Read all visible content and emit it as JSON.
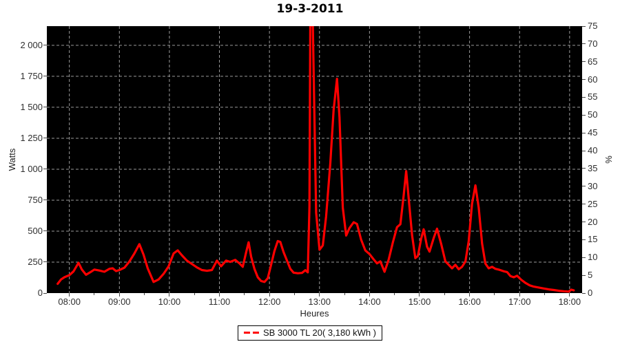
{
  "title": "19-3-2011",
  "legend": {
    "label": "SB 3000 TL 20( 3,180 kWh )"
  },
  "colors": {
    "line": "#ff0000",
    "plot_background": "#000000",
    "grid": "#9b9b9b",
    "page_background": "#ffffff",
    "tick": "#444444"
  },
  "chart_data": {
    "type": "line",
    "title": "19-3-2011",
    "xlabel": "Heures",
    "ylabel_left": "Watts",
    "ylabel_right": "%",
    "grid": true,
    "legend_position": "bottom",
    "plot_background": "black",
    "x_domain_minutes": [
      453,
      1095
    ],
    "ylim_left": [
      0,
      2155
    ],
    "ylim_right": [
      0,
      75
    ],
    "x_ticks": [
      "08:00",
      "09:00",
      "10:00",
      "11:00",
      "12:00",
      "13:00",
      "14:00",
      "15:00",
      "16:00",
      "17:00",
      "18:00"
    ],
    "y_left_ticks": [
      "0",
      "250",
      "500",
      "750",
      "1 000",
      "1 250",
      "1 500",
      "1 750",
      "2 000"
    ],
    "y_left_tick_values": [
      0,
      250,
      500,
      750,
      1000,
      1250,
      1500,
      1750,
      2000
    ],
    "y_right_ticks": [
      "0",
      "5",
      "10",
      "15",
      "20",
      "25",
      "30",
      "35",
      "40",
      "45",
      "50",
      "55",
      "60",
      "65",
      "70",
      "75"
    ],
    "y_right_tick_values": [
      0,
      5,
      10,
      15,
      20,
      25,
      30,
      35,
      40,
      45,
      50,
      55,
      60,
      65,
      70,
      75
    ],
    "note": "Midday spike ~12:49-12:52 exceeds the top of the plot and is clipped (>2155 W)",
    "series": [
      {
        "name": "SB 3000 TL 20( 3,180 kWh )",
        "color": "#ff0000",
        "points": [
          [
            "07:46",
            75
          ],
          [
            "07:50",
            110
          ],
          [
            "07:54",
            128
          ],
          [
            "08:00",
            145
          ],
          [
            "08:05",
            175
          ],
          [
            "08:11",
            245
          ],
          [
            "08:15",
            190
          ],
          [
            "08:20",
            148
          ],
          [
            "08:25",
            168
          ],
          [
            "08:30",
            190
          ],
          [
            "08:36",
            182
          ],
          [
            "08:42",
            172
          ],
          [
            "08:48",
            196
          ],
          [
            "08:52",
            200
          ],
          [
            "08:56",
            178
          ],
          [
            "09:00",
            186
          ],
          [
            "09:06",
            205
          ],
          [
            "09:12",
            255
          ],
          [
            "09:18",
            320
          ],
          [
            "09:24",
            395
          ],
          [
            "09:29",
            310
          ],
          [
            "09:34",
            200
          ],
          [
            "09:41",
            90
          ],
          [
            "09:47",
            110
          ],
          [
            "09:53",
            155
          ],
          [
            "09:59",
            215
          ],
          [
            "10:05",
            320
          ],
          [
            "10:10",
            345
          ],
          [
            "10:15",
            305
          ],
          [
            "10:21",
            262
          ],
          [
            "10:27",
            235
          ],
          [
            "10:33",
            207
          ],
          [
            "10:39",
            186
          ],
          [
            "10:45",
            180
          ],
          [
            "10:51",
            186
          ],
          [
            "10:57",
            262
          ],
          [
            "11:02",
            216
          ],
          [
            "11:08",
            262
          ],
          [
            "11:13",
            252
          ],
          [
            "11:19",
            268
          ],
          [
            "11:24",
            240
          ],
          [
            "11:28",
            212
          ],
          [
            "11:32",
            330
          ],
          [
            "11:35",
            410
          ],
          [
            "11:38",
            295
          ],
          [
            "11:42",
            195
          ],
          [
            "11:46",
            128
          ],
          [
            "11:50",
            98
          ],
          [
            "11:54",
            90
          ],
          [
            "11:58",
            120
          ],
          [
            "12:02",
            230
          ],
          [
            "12:06",
            340
          ],
          [
            "12:10",
            420
          ],
          [
            "12:13",
            413
          ],
          [
            "12:17",
            330
          ],
          [
            "12:21",
            262
          ],
          [
            "12:25",
            196
          ],
          [
            "12:29",
            165
          ],
          [
            "12:34",
            160
          ],
          [
            "12:39",
            163
          ],
          [
            "12:43",
            185
          ],
          [
            "12:46",
            168
          ],
          [
            "12:48",
            700
          ],
          [
            "12:49",
            2160
          ],
          [
            "12:52",
            2160
          ],
          [
            "12:54",
            1400
          ],
          [
            "12:56",
            650
          ],
          [
            "13:00",
            350
          ],
          [
            "13:04",
            385
          ],
          [
            "13:08",
            620
          ],
          [
            "13:13",
            1050
          ],
          [
            "13:17",
            1480
          ],
          [
            "13:21",
            1730
          ],
          [
            "13:24",
            1420
          ],
          [
            "13:28",
            690
          ],
          [
            "13:32",
            465
          ],
          [
            "13:36",
            525
          ],
          [
            "13:41",
            572
          ],
          [
            "13:45",
            558
          ],
          [
            "13:50",
            430
          ],
          [
            "13:55",
            345
          ],
          [
            "14:00",
            315
          ],
          [
            "14:05",
            272
          ],
          [
            "14:09",
            240
          ],
          [
            "14:13",
            256
          ],
          [
            "14:18",
            172
          ],
          [
            "14:23",
            270
          ],
          [
            "14:28",
            410
          ],
          [
            "14:33",
            532
          ],
          [
            "14:37",
            556
          ],
          [
            "14:41",
            790
          ],
          [
            "14:44",
            985
          ],
          [
            "14:48",
            690
          ],
          [
            "14:51",
            470
          ],
          [
            "14:55",
            282
          ],
          [
            "14:58",
            300
          ],
          [
            "15:02",
            440
          ],
          [
            "15:05",
            515
          ],
          [
            "15:09",
            375
          ],
          [
            "15:12",
            335
          ],
          [
            "15:17",
            445
          ],
          [
            "15:21",
            520
          ],
          [
            "15:26",
            395
          ],
          [
            "15:31",
            256
          ],
          [
            "15:35",
            228
          ],
          [
            "15:39",
            200
          ],
          [
            "15:43",
            228
          ],
          [
            "15:47",
            192
          ],
          [
            "15:51",
            212
          ],
          [
            "15:55",
            255
          ],
          [
            "15:59",
            420
          ],
          [
            "16:03",
            720
          ],
          [
            "16:07",
            870
          ],
          [
            "16:11",
            690
          ],
          [
            "16:15",
            400
          ],
          [
            "16:19",
            238
          ],
          [
            "16:23",
            200
          ],
          [
            "16:27",
            212
          ],
          [
            "16:31",
            196
          ],
          [
            "16:36",
            188
          ],
          [
            "16:41",
            176
          ],
          [
            "16:45",
            170
          ],
          [
            "16:49",
            138
          ],
          [
            "16:53",
            128
          ],
          [
            "16:57",
            140
          ],
          [
            "17:02",
            108
          ],
          [
            "17:07",
            82
          ],
          [
            "17:12",
            63
          ],
          [
            "17:17",
            52
          ],
          [
            "17:23",
            45
          ],
          [
            "17:29",
            37
          ],
          [
            "17:35",
            30
          ],
          [
            "17:41",
            25
          ],
          [
            "17:47",
            19
          ],
          [
            "17:53",
            15
          ],
          [
            "17:59",
            12
          ],
          [
            "18:02",
            28
          ],
          [
            "18:05",
            22
          ]
        ]
      }
    ]
  }
}
